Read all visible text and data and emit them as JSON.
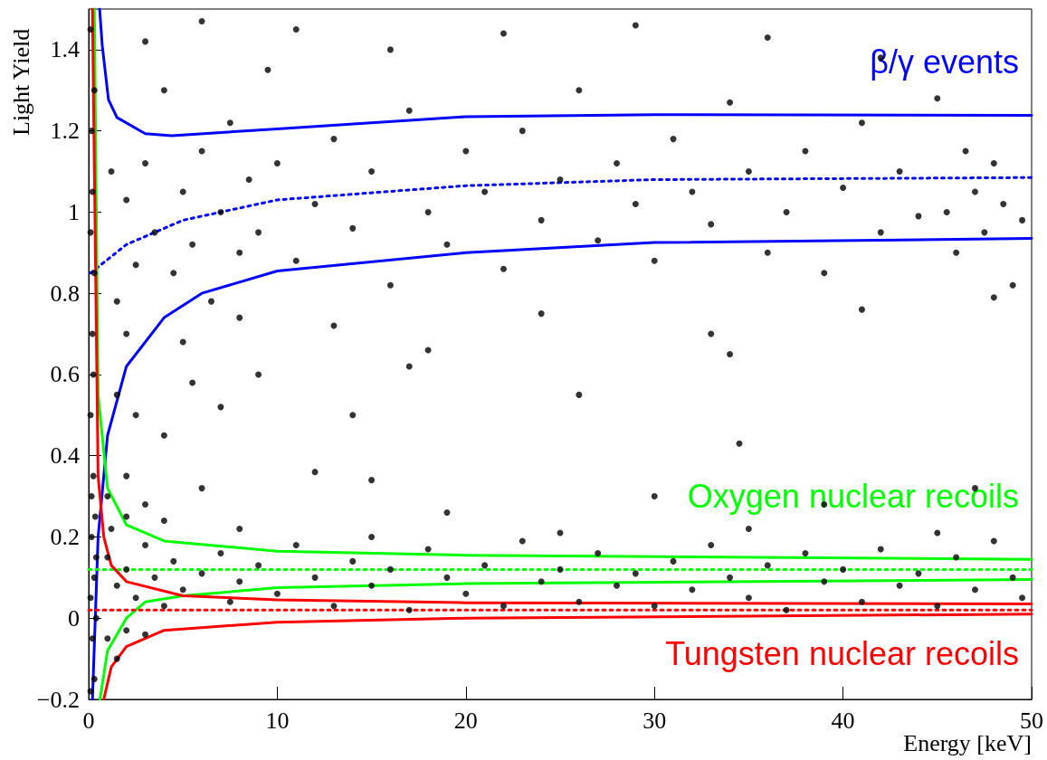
{
  "chart_data": {
    "type": "scatter",
    "xlabel": "Energy [keV]",
    "ylabel": "Light Yield",
    "xlim": [
      0,
      50
    ],
    "ylim": [
      -0.2,
      1.5
    ],
    "xticks": [
      0,
      10,
      20,
      30,
      40,
      50
    ],
    "yticks": [
      {
        "value": -0.2,
        "label": "−0.2"
      },
      0,
      0.2,
      0.4,
      0.6,
      0.8,
      1,
      1.2,
      1.4
    ],
    "grid": false,
    "legend": false,
    "marker": "circle",
    "series": [
      {
        "color": "#000000",
        "x": [
          0.1,
          0.15,
          0.1,
          0.2,
          0.1,
          0.25,
          0.15,
          0.3,
          0.1,
          0.2,
          0.3,
          0.1,
          0.25,
          0.2,
          0.3,
          0.35,
          0.4,
          0.4,
          0.15,
          0.3,
          1.2,
          1.5,
          2,
          2.5,
          3,
          3.5,
          4,
          4.5,
          5,
          5.5,
          6,
          6.5,
          7,
          7.5,
          8,
          8.5,
          9,
          9.5,
          10,
          11,
          12,
          13,
          14,
          15,
          16,
          17,
          18,
          19,
          20,
          21,
          22,
          23,
          24,
          25,
          26,
          27,
          28,
          29,
          30,
          31,
          32,
          33,
          34,
          35,
          36,
          37,
          38,
          39,
          40,
          41,
          42,
          43,
          44,
          45,
          46,
          47,
          48,
          49,
          49.5,
          48.5,
          47.5,
          46.5,
          45.5,
          3,
          6,
          11,
          16,
          22,
          29,
          36,
          42,
          2,
          5,
          8,
          13,
          18,
          24,
          33,
          41,
          48,
          1.5,
          2.5,
          4,
          5.5,
          7,
          9,
          14,
          17,
          26,
          34,
          34.5,
          1,
          2,
          3,
          6,
          12,
          15,
          19,
          30,
          39,
          47,
          1,
          1.5,
          2,
          2.5,
          3,
          3.5,
          4,
          4.5,
          5,
          6,
          7,
          7.5,
          8,
          9,
          10,
          11,
          12,
          13,
          14,
          15,
          16,
          17,
          18,
          19,
          20,
          21,
          22,
          23,
          24,
          25,
          26,
          27,
          28,
          29,
          30,
          31,
          32,
          33,
          34,
          35,
          36,
          37,
          38,
          39,
          40,
          41,
          42,
          43,
          44,
          45,
          46,
          47,
          48,
          49,
          49.5,
          1,
          1.5,
          2,
          3,
          1.2,
          2,
          4,
          8,
          15,
          25,
          35,
          45
        ],
        "values": [
          1.45,
          1.2,
          0.95,
          0.7,
          0.5,
          0.35,
          0.2,
          0.1,
          0.05,
          -0.05,
          -0.15,
          -0.18,
          0.6,
          1.05,
          0.85,
          0.25,
          0.15,
          0.0,
          0.3,
          1.3,
          1.1,
          0.78,
          1.03,
          0.87,
          1.12,
          0.95,
          1.3,
          0.85,
          1.05,
          0.92,
          1.15,
          0.78,
          1.0,
          1.22,
          0.9,
          1.08,
          0.95,
          1.35,
          1.12,
          0.88,
          1.02,
          1.18,
          0.96,
          1.1,
          0.82,
          1.25,
          1.0,
          0.92,
          1.15,
          1.05,
          0.86,
          1.2,
          0.98,
          1.08,
          1.3,
          0.93,
          1.12,
          1.02,
          0.88,
          1.18,
          1.05,
          0.97,
          1.27,
          1.1,
          0.9,
          1.0,
          1.15,
          0.85,
          1.06,
          1.22,
          0.95,
          1.1,
          0.99,
          1.28,
          0.9,
          1.05,
          1.12,
          0.82,
          0.98,
          1.02,
          0.95,
          1.15,
          1.0,
          1.42,
          1.47,
          1.45,
          1.4,
          1.44,
          1.46,
          1.43,
          1.38,
          0.7,
          0.68,
          0.74,
          0.72,
          0.66,
          0.75,
          0.7,
          0.76,
          0.79,
          0.55,
          0.5,
          0.45,
          0.58,
          0.52,
          0.6,
          0.5,
          0.62,
          0.55,
          0.65,
          0.43,
          0.3,
          0.35,
          0.28,
          0.32,
          0.36,
          0.34,
          0.26,
          0.3,
          0.28,
          0.32,
          0.15,
          0.08,
          0.12,
          0.05,
          0.18,
          0.1,
          0.03,
          0.14,
          0.07,
          0.11,
          0.16,
          0.04,
          0.09,
          0.13,
          0.06,
          0.18,
          0.1,
          0.03,
          0.14,
          0.08,
          0.12,
          0.02,
          0.17,
          0.1,
          0.06,
          0.13,
          0.03,
          0.19,
          0.09,
          0.12,
          0.04,
          0.16,
          0.08,
          0.11,
          0.03,
          0.14,
          0.07,
          0.18,
          0.1,
          0.05,
          0.13,
          0.02,
          0.16,
          0.09,
          0.12,
          0.04,
          0.17,
          0.08,
          0.11,
          0.03,
          0.15,
          0.07,
          0.19,
          0.1,
          0.05,
          -0.05,
          -0.1,
          -0.03,
          -0.04,
          0.22,
          0.25,
          0.24,
          0.22,
          0.2,
          0.21,
          0.22,
          0.21
        ]
      },
      {
        "type": "line",
        "color": "#0000ff",
        "marker": "none",
        "line_style": "solid",
        "x": [
          0.58,
          0.72,
          1.05,
          1.5,
          3,
          4.4,
          10,
          20,
          30,
          50
        ],
        "values": [
          1.5,
          1.41,
          1.277,
          1.233,
          1.193,
          1.188,
          1.205,
          1.235,
          1.24,
          1.238
        ]
      },
      {
        "type": "line",
        "name": "β/γ events",
        "color": "#0000ff",
        "marker": "none",
        "line_style": "dotted",
        "x": [
          0.1,
          2,
          5,
          10,
          20,
          30,
          50
        ],
        "values": [
          0.85,
          0.92,
          0.98,
          1.03,
          1.065,
          1.08,
          1.085
        ]
      },
      {
        "type": "line",
        "color": "#0000ff",
        "marker": "none",
        "line_style": "solid",
        "x": [
          0.2,
          0.5,
          1,
          2,
          4,
          6,
          10,
          20,
          30,
          50
        ],
        "values": [
          -0.2,
          0.2,
          0.45,
          0.62,
          0.74,
          0.8,
          0.855,
          0.9,
          0.925,
          0.935
        ]
      },
      {
        "type": "line",
        "color": "#00ff00",
        "marker": "none",
        "line_style": "solid",
        "x": [
          0.3,
          0.5,
          1,
          2,
          4,
          10,
          20,
          50
        ],
        "values": [
          1.5,
          0.55,
          0.32,
          0.23,
          0.19,
          0.165,
          0.155,
          0.145
        ]
      },
      {
        "type": "line",
        "name": "Oxygen nuclear recoils",
        "color": "#00ff00",
        "marker": "none",
        "line_style": "dotted",
        "x": [
          0,
          50
        ],
        "values": [
          0.12,
          0.12
        ]
      },
      {
        "type": "line",
        "color": "#00ff00",
        "marker": "none",
        "line_style": "solid",
        "x": [
          0.6,
          1,
          2,
          3,
          5,
          10,
          20,
          50
        ],
        "values": [
          -0.2,
          -0.08,
          0.0,
          0.04,
          0.055,
          0.075,
          0.085,
          0.095
        ]
      },
      {
        "type": "line",
        "color": "#ff0000",
        "marker": "none",
        "line_style": "solid",
        "x": [
          0.2,
          0.5,
          0.8,
          1.2,
          2,
          5,
          10,
          20,
          50
        ],
        "values": [
          1.5,
          0.35,
          0.2,
          0.13,
          0.09,
          0.055,
          0.045,
          0.038,
          0.035
        ]
      },
      {
        "type": "line",
        "name": "Tungsten nuclear recoils",
        "color": "#ff0000",
        "marker": "none",
        "line_style": "dotted",
        "x": [
          0,
          50
        ],
        "values": [
          0.02,
          0.02
        ]
      },
      {
        "type": "line",
        "color": "#ff0000",
        "marker": "none",
        "line_style": "solid",
        "x": [
          0.8,
          1.2,
          2,
          4,
          10,
          20,
          50
        ],
        "values": [
          -0.2,
          -0.12,
          -0.07,
          -0.03,
          -0.01,
          0.0,
          0.01
        ]
      }
    ]
  }
}
